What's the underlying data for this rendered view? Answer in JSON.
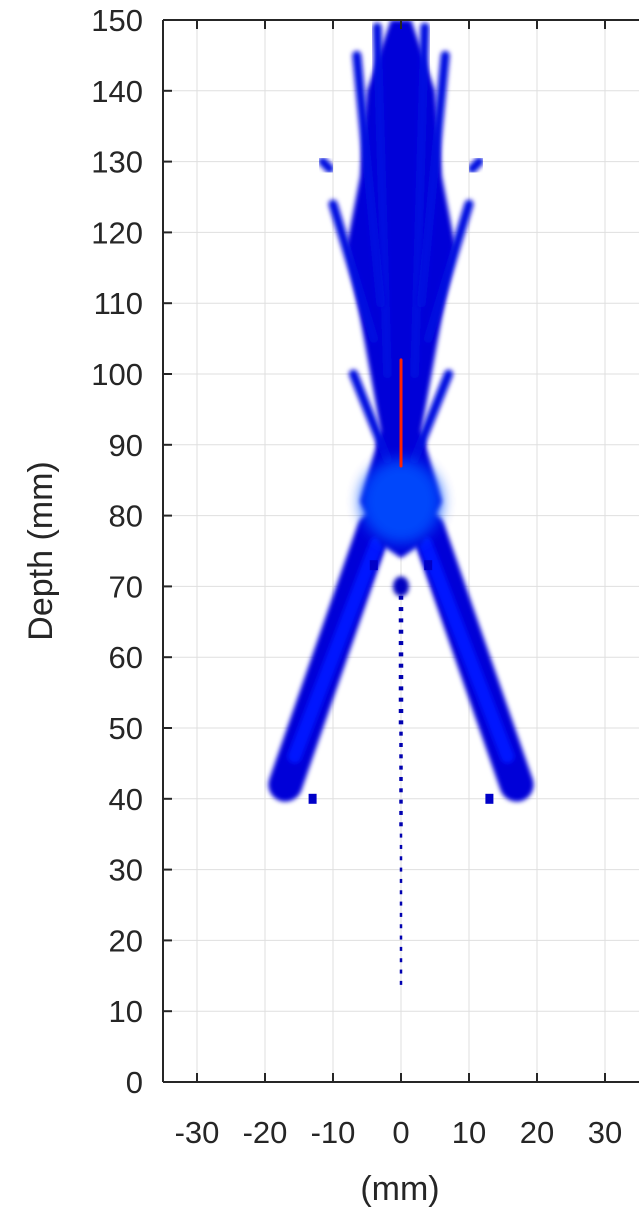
{
  "chart_data": {
    "type": "heatmap",
    "title": "",
    "xlabel": "(mm)",
    "ylabel": "Depth (mm)",
    "xlim": [
      -35,
      35
    ],
    "ylim": [
      0,
      150
    ],
    "x_ticks": [
      -30,
      -20,
      -10,
      0,
      10,
      20,
      30
    ],
    "y_ticks": [
      0,
      10,
      20,
      30,
      40,
      50,
      60,
      70,
      80,
      90,
      100,
      110,
      120,
      130,
      140,
      150
    ],
    "x_tick_labels": [
      "-30",
      "-20",
      "-10",
      "0",
      "10",
      "20",
      "30"
    ],
    "y_tick_labels": [
      "0",
      "10",
      "20",
      "30",
      "40",
      "50",
      "60",
      "70",
      "80",
      "90",
      "100",
      "110",
      "120",
      "130",
      "140",
      "150"
    ],
    "grid": true,
    "colormap": "jet",
    "colors": {
      "background": "#ffffff",
      "grid": "#dfdfdf",
      "axis": "#262626",
      "field_low": "#0000d8",
      "field_mid": "#00c8ff",
      "field_high": "#ff2200"
    },
    "features": {
      "focal_peak": {
        "x": 0,
        "depth_range": [
          85,
          103
        ]
      },
      "central_lobe": {
        "x_range": [
          -10,
          10
        ],
        "depth_range": [
          75,
          150
        ]
      },
      "side_lobes": [
        {
          "from": [
            -4,
            78
          ],
          "to": [
            -17,
            42
          ]
        },
        {
          "from": [
            4,
            78
          ],
          "to": [
            17,
            42
          ]
        }
      ],
      "near_field_dots": {
        "x": 0,
        "depth_range": [
          14,
          70
        ]
      }
    }
  }
}
